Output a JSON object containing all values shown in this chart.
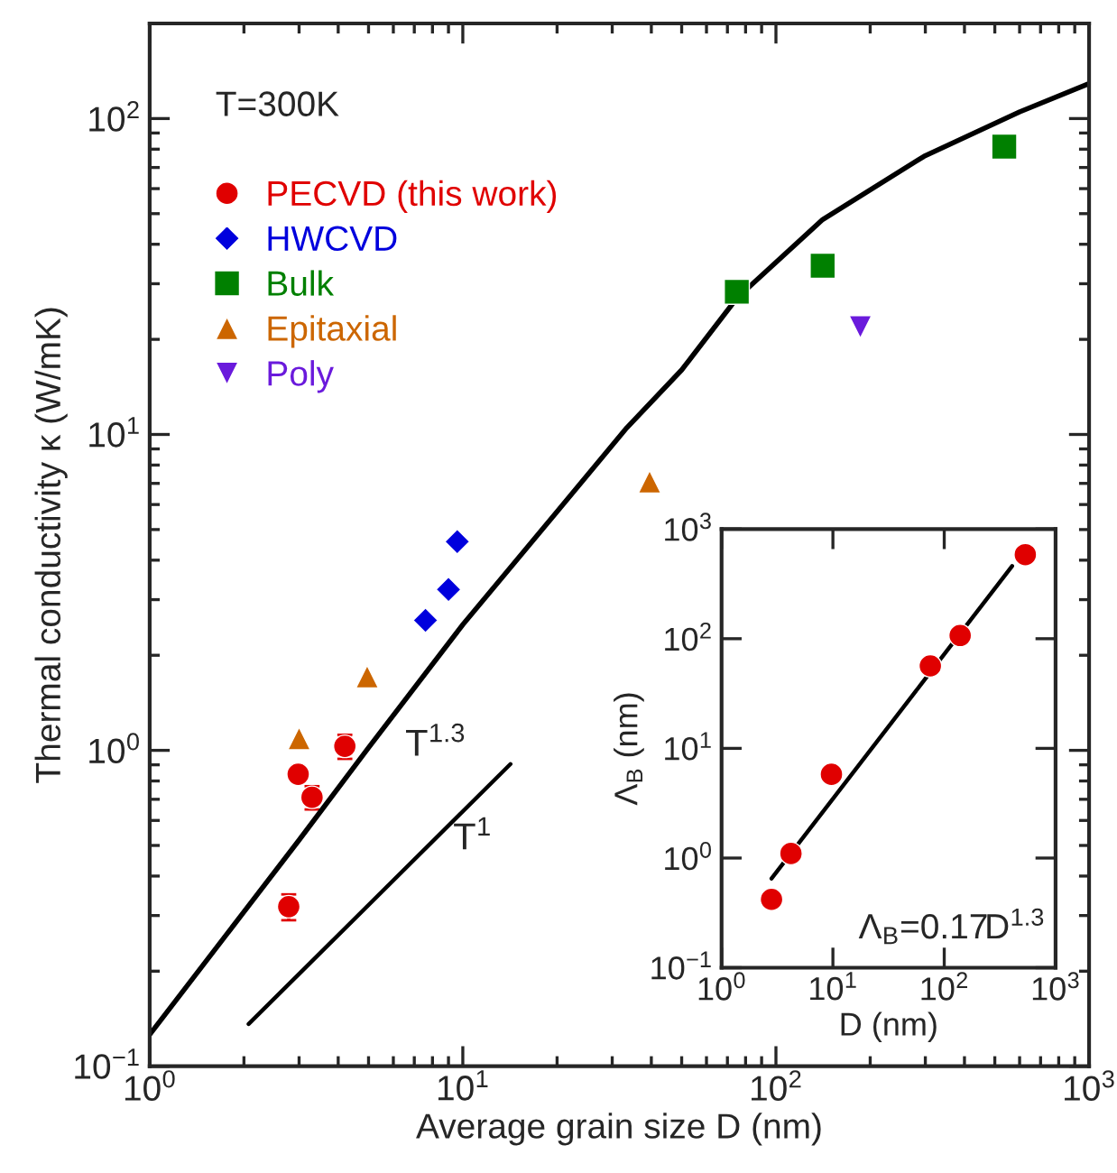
{
  "chart_data": [
    {
      "type": "scatter",
      "xlabel": "Average grain size D (nm)",
      "ylabel": "Thermal conductivity κ (W/mK)",
      "log": "xy",
      "xlim": [
        1,
        1000
      ],
      "ylim": [
        0.1,
        200
      ],
      "xticks": [
        {
          "value": 1,
          "label": "10$^{0}$"
        },
        {
          "value": 10,
          "label": "10$^{1}$"
        },
        {
          "value": 100,
          "label": "10$^{2}$"
        },
        {
          "value": 1000,
          "label": "10$^{3}$"
        }
      ],
      "yticks": [
        {
          "value": 0.1,
          "label": "10$^{−1}$"
        },
        {
          "value": 1,
          "label": "10$^{0}$"
        },
        {
          "value": 10,
          "label": "10$^{1}$"
        },
        {
          "value": 100,
          "label": "10$^{2}$"
        }
      ],
      "grid": false,
      "legend": "top left",
      "annotations": [
        "T=300K",
        "T$^{1.3}$",
        "T$^{1}$"
      ],
      "series": [
        {
          "name": "PECVD (this work)",
          "marker": "circle",
          "color": "#e00000",
          "x": [
            2.78,
            2.98,
            3.3,
            4.2
          ],
          "values": [
            0.32,
            0.84,
            0.71,
            1.03
          ],
          "errors": [
            0.03,
            null,
            0.06,
            0.09
          ]
        },
        {
          "name": "HWCVD",
          "marker": "diamond",
          "color": "#0000dd",
          "x": [
            7.6,
            9.0,
            9.6
          ],
          "values": [
            2.58,
            3.23,
            4.58
          ]
        },
        {
          "name": "Bulk",
          "marker": "square",
          "color": "#008000",
          "x": [
            75,
            141,
            536
          ],
          "values": [
            28.3,
            34.2,
            81.5
          ]
        },
        {
          "name": "Epitaxial",
          "marker": "triangle",
          "color": "#cc6600",
          "x": [
            3.0,
            4.95,
            39.5
          ],
          "values": [
            1.09,
            1.71,
            7.08
          ]
        },
        {
          "name": "Poly",
          "marker": "triangle_down",
          "color": "#6a1adc",
          "x": [
            186
          ],
          "values": [
            21.9
          ]
        },
        {
          "type": "line",
          "marker": "none",
          "color": "#000000",
          "x": [
            1,
            3,
            5,
            10,
            20,
            33.4,
            50,
            75,
            141,
            297,
            600,
            1000
          ],
          "values": [
            0.126,
            0.52,
            1.02,
            2.5,
            5.7,
            10.5,
            16,
            27,
            47.9,
            75.9,
            105,
            129
          ]
        },
        {
          "type": "line",
          "marker": "none",
          "color": "#000000",
          "x": [
            2.07,
            14.2
          ],
          "values": [
            0.136,
            0.905
          ]
        }
      ]
    },
    {
      "type": "scatter",
      "xlabel": "D (nm)",
      "ylabel": "Λ$_{B}$ (nm)",
      "log": "xy",
      "xlim": [
        1,
        1000
      ],
      "ylim": [
        0.1,
        1000
      ],
      "xticks": [
        {
          "value": 1,
          "label": "10$^{0}$"
        },
        {
          "value": 10,
          "label": "10$^{1}$"
        },
        {
          "value": 100,
          "label": "10$^{2}$"
        },
        {
          "value": 1000,
          "label": "10$^{3}$"
        }
      ],
      "yticks": [
        {
          "value": 0.1,
          "label": "10$^{−1}$"
        },
        {
          "value": 1,
          "label": "10$^{0}$"
        },
        {
          "value": 10,
          "label": "10$^{1}$"
        },
        {
          "value": 100,
          "label": "10$^{2}$"
        },
        {
          "value": 1000,
          "label": "10$^{3}$"
        }
      ],
      "grid": false,
      "annotations": [
        "Λ$_{B}$=0.17D$^{1.3}$"
      ],
      "series": [
        {
          "marker": "circle",
          "color": "#e00000",
          "x": [
            2.81,
            4.2,
            9.7,
            75,
            139,
            535
          ],
          "values": [
            0.42,
            1.1,
            5.8,
            56.5,
            107,
            584
          ]
        },
        {
          "type": "line",
          "marker": "none",
          "color": "#000000",
          "x": [
            2.81,
            407
          ],
          "values": [
            0.65,
            460
          ]
        }
      ]
    }
  ]
}
